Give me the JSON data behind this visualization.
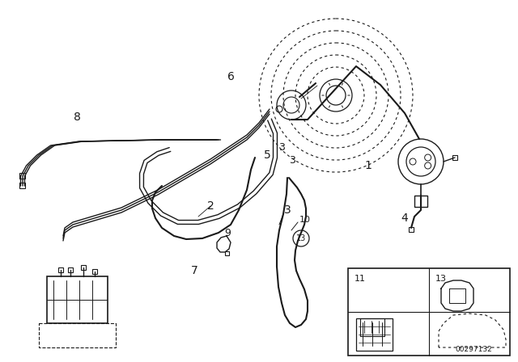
{
  "bg_color": "#ffffff",
  "line_color": "#1a1a1a",
  "figsize": [
    6.4,
    4.48
  ],
  "dpi": 100,
  "watermark": "00297132"
}
